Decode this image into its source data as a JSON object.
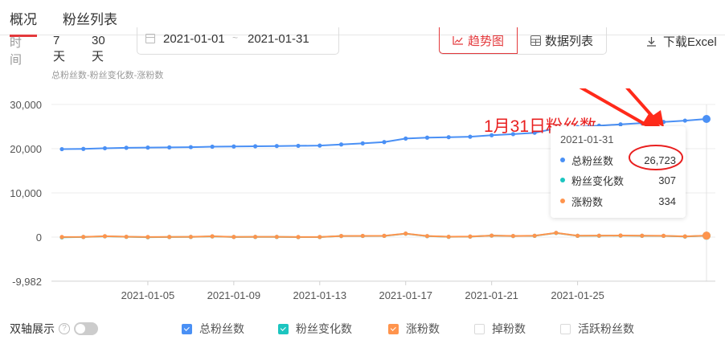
{
  "tabs": [
    {
      "label": "概况",
      "active": true
    },
    {
      "label": "粉丝列表",
      "active": false
    }
  ],
  "filter": {
    "time_label": "时间",
    "quick": [
      "7天",
      "30天"
    ],
    "date_from": "2021-01-01",
    "date_sep": "~",
    "date_to": "2021-01-31"
  },
  "view": {
    "trend_label": "趋势图",
    "table_label": "数据列表",
    "download_label": "下载Excel"
  },
  "subtitle": "总粉丝数-粉丝变化数-涨粉数",
  "annotation": "1月31日粉丝数",
  "tooltip": {
    "date": "2021-01-31",
    "rows": [
      {
        "name": "总粉丝数",
        "value": "26,723",
        "color": "#4a90f5"
      },
      {
        "name": "粉丝变化数",
        "value": "307",
        "color": "#1cc5c0"
      },
      {
        "name": "涨粉数",
        "value": "334",
        "color": "#ff944d"
      }
    ]
  },
  "footer": {
    "dual_axis_label": "双轴展示",
    "help": "?",
    "legend": [
      {
        "label": "总粉丝数",
        "checked": true,
        "color": "#4a90f5"
      },
      {
        "label": "粉丝变化数",
        "checked": true,
        "color": "#1cc5c0"
      },
      {
        "label": "涨粉数",
        "checked": true,
        "color": "#ff944d"
      },
      {
        "label": "掉粉数",
        "checked": false,
        "color": "#d9d9d9"
      },
      {
        "label": "活跃粉丝数",
        "checked": false,
        "color": "#d9d9d9"
      }
    ]
  },
  "colors": {
    "accent": "#e4393c",
    "blue": "#4a90f5",
    "teal": "#1cc5c0",
    "orange": "#ff944d"
  },
  "chart_data": {
    "type": "line",
    "title": "总粉丝数-粉丝变化数-涨粉数",
    "xlabel": "",
    "ylabel": "",
    "ylim": [
      -9982,
      30000
    ],
    "y_ticks": [
      "30,000",
      "20,000",
      "10,000",
      "0",
      "-9,982"
    ],
    "x_tick_labels": [
      "2021-01-05",
      "2021-01-09",
      "2021-01-13",
      "2021-01-17",
      "2021-01-21",
      "2021-01-25"
    ],
    "grid": true,
    "legend_position": "bottom",
    "x": [
      "2021-01-01",
      "2021-01-02",
      "2021-01-03",
      "2021-01-04",
      "2021-01-05",
      "2021-01-06",
      "2021-01-07",
      "2021-01-08",
      "2021-01-09",
      "2021-01-10",
      "2021-01-11",
      "2021-01-12",
      "2021-01-13",
      "2021-01-14",
      "2021-01-15",
      "2021-01-16",
      "2021-01-17",
      "2021-01-18",
      "2021-01-19",
      "2021-01-20",
      "2021-01-21",
      "2021-01-22",
      "2021-01-23",
      "2021-01-24",
      "2021-01-25",
      "2021-01-26",
      "2021-01-27",
      "2021-01-28",
      "2021-01-29",
      "2021-01-30",
      "2021-01-31"
    ],
    "series": [
      {
        "name": "总粉丝数",
        "color": "#4a90f5",
        "values": [
          19900,
          19950,
          20100,
          20200,
          20250,
          20300,
          20350,
          20450,
          20500,
          20550,
          20600,
          20650,
          20700,
          20950,
          21200,
          21500,
          22300,
          22500,
          22600,
          22700,
          23050,
          23300,
          23600,
          24600,
          24900,
          25200,
          25500,
          25800,
          26050,
          26350,
          26723
        ]
      },
      {
        "name": "粉丝变化数",
        "color": "#1cc5c0",
        "values": [
          -50,
          20,
          180,
          60,
          -20,
          20,
          40,
          160,
          30,
          40,
          40,
          -10,
          10,
          240,
          260,
          280,
          780,
          220,
          60,
          120,
          330,
          240,
          290,
          940,
          290,
          310,
          340,
          300,
          280,
          140,
          307
        ]
      },
      {
        "name": "涨粉数",
        "color": "#ff944d",
        "values": [
          20,
          40,
          200,
          80,
          20,
          40,
          60,
          180,
          50,
          60,
          60,
          20,
          30,
          260,
          280,
          300,
          800,
          240,
          80,
          140,
          350,
          260,
          310,
          960,
          310,
          330,
          360,
          320,
          300,
          160,
          334
        ]
      }
    ]
  }
}
